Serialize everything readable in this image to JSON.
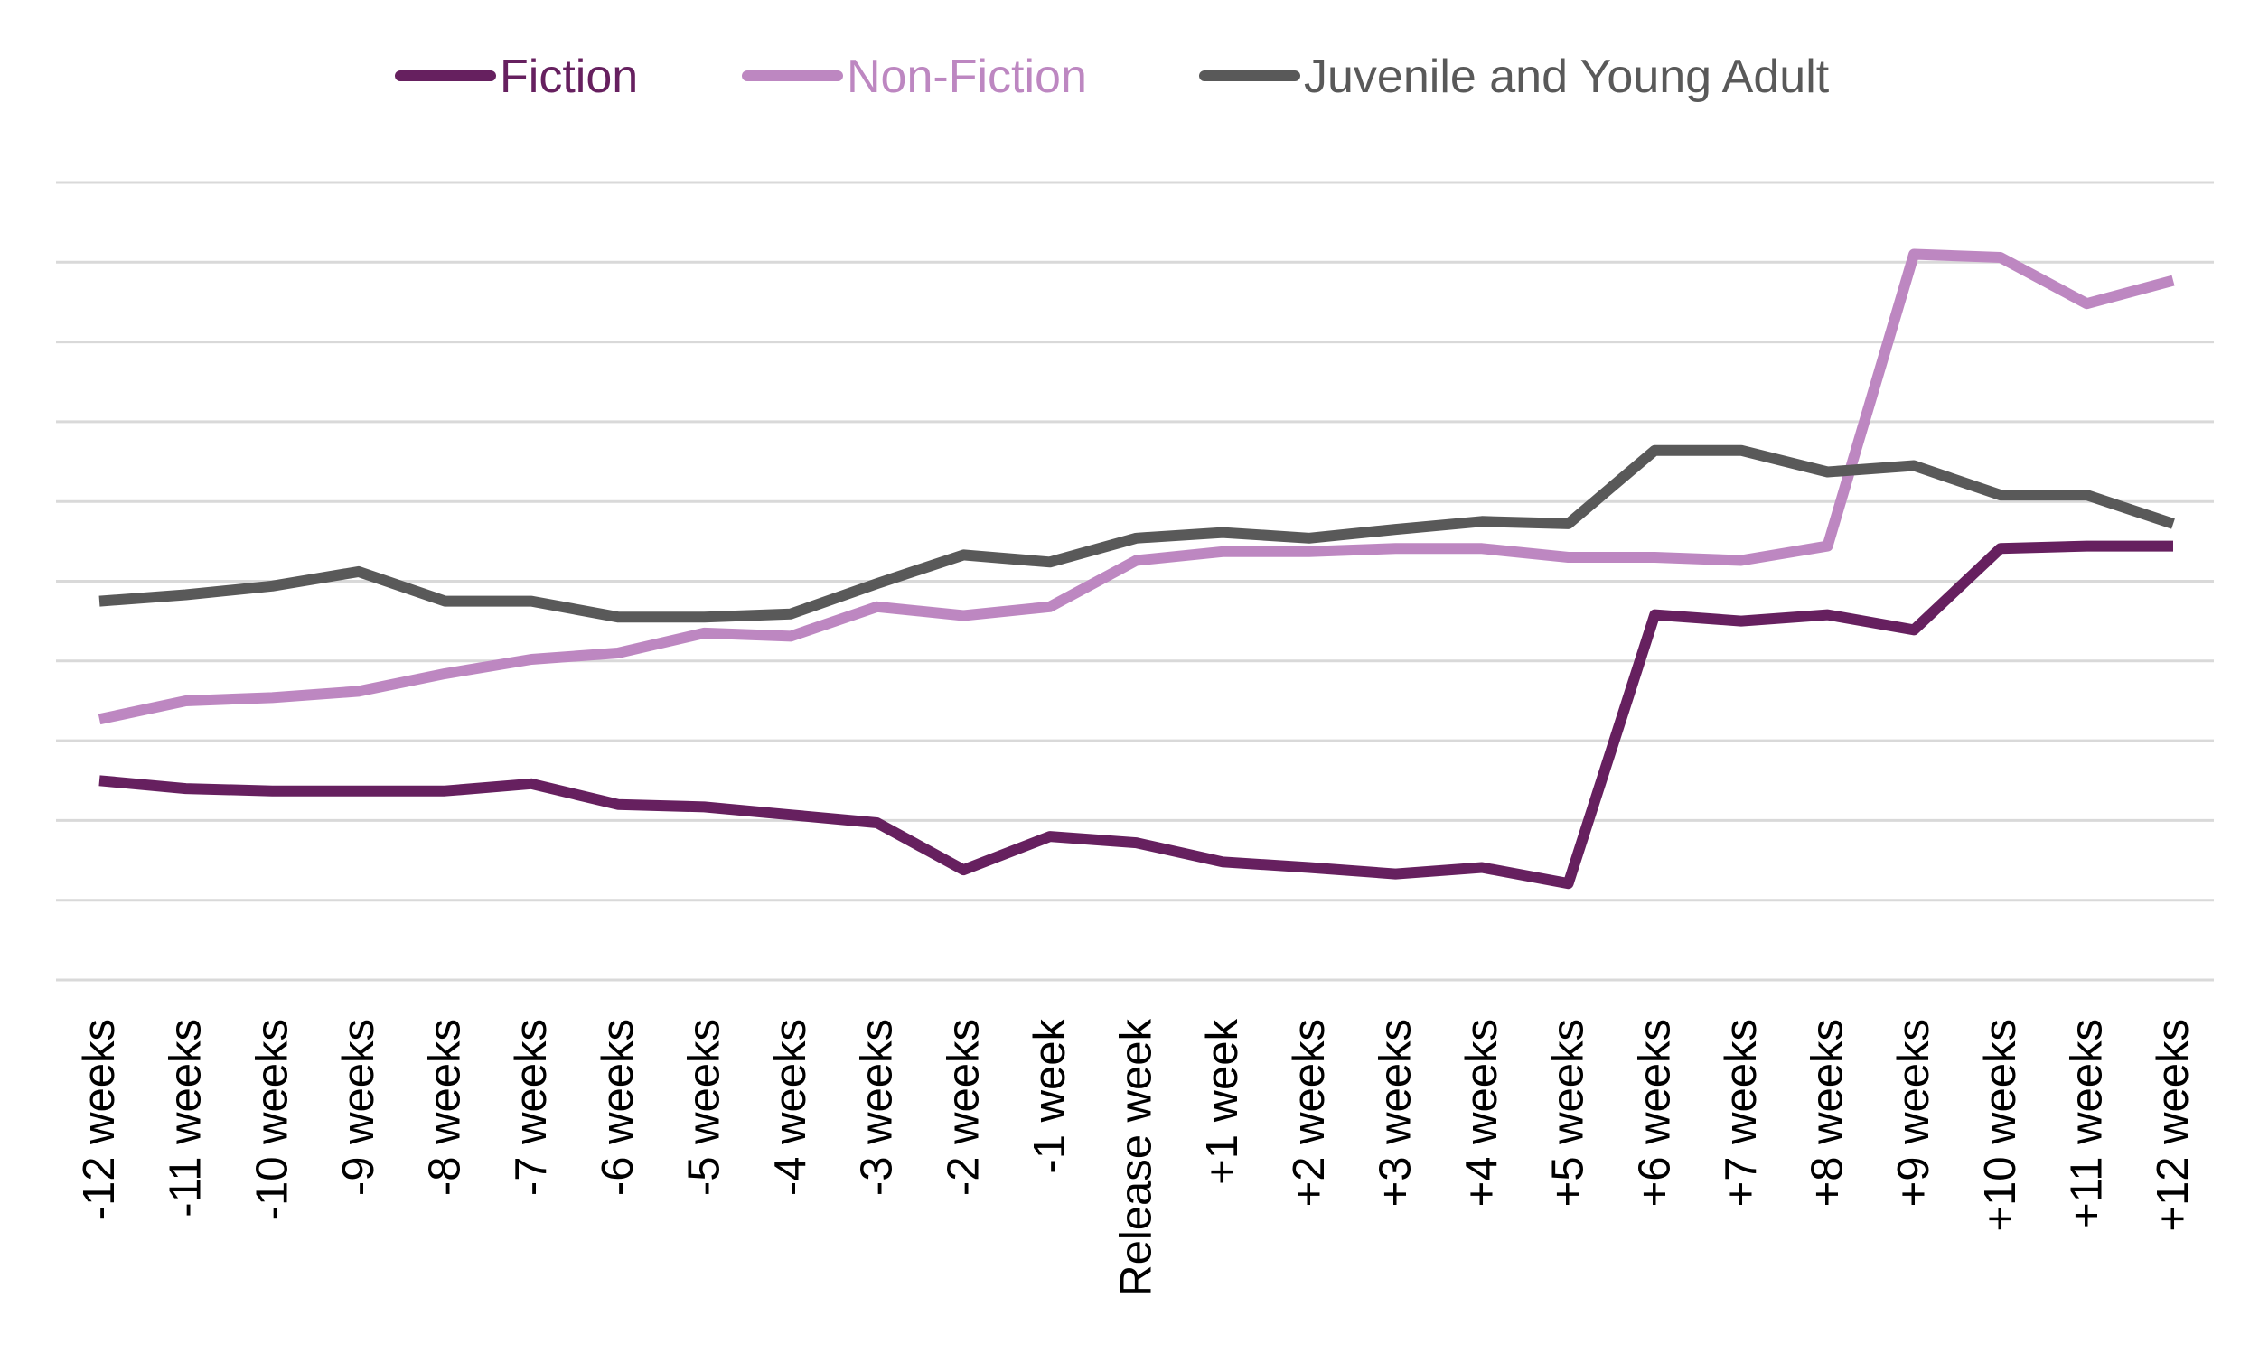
{
  "chart_data": {
    "type": "line",
    "title": "",
    "xlabel": "",
    "ylabel": "",
    "ylim": [
      0,
      10
    ],
    "y_gridlines": 11,
    "y_tick_labels_visible": false,
    "grid": true,
    "legend_position": "top",
    "categories": [
      "-12 weeks",
      "-11 weeks",
      "-10 weeks",
      "-9 weeks",
      "-8 weeks",
      "-7 weeks",
      "-6 weeks",
      "-5 weeks",
      "-4 weeks",
      "-3 weeks",
      "-2 weeks",
      "-1 week",
      "Release week",
      "+1 week",
      "+2 weeks",
      "+3 weeks",
      "+4 weeks",
      "+5 weeks",
      "+6 weeks",
      "+7 weeks",
      "+8 weeks",
      "+9 weeks",
      "+10 weeks",
      "+11 weeks",
      "+12 weeks"
    ],
    "series": [
      {
        "name": "Fiction",
        "color": "#66205f",
        "values": [
          2.5,
          2.4,
          2.37,
          2.37,
          2.37,
          2.46,
          2.2,
          2.17,
          2.07,
          1.97,
          1.38,
          1.8,
          1.72,
          1.48,
          1.41,
          1.33,
          1.41,
          1.21,
          4.58,
          4.5,
          4.58,
          4.39,
          5.41,
          5.44,
          5.44
        ]
      },
      {
        "name": "Non-Fiction",
        "color": "#bd87c1",
        "values": [
          3.27,
          3.5,
          3.54,
          3.62,
          3.84,
          4.02,
          4.1,
          4.35,
          4.31,
          4.68,
          4.57,
          4.68,
          5.26,
          5.37,
          5.37,
          5.41,
          5.41,
          5.3,
          5.3,
          5.26,
          5.44,
          9.1,
          9.06,
          8.48,
          8.77
        ]
      },
      {
        "name": "Juvenile and Young Adult",
        "color": "#595959",
        "values": [
          4.75,
          4.83,
          4.94,
          5.12,
          4.75,
          4.75,
          4.55,
          4.55,
          4.59,
          4.97,
          5.33,
          5.24,
          5.54,
          5.61,
          5.54,
          5.65,
          5.75,
          5.72,
          6.64,
          6.64,
          6.37,
          6.45,
          6.08,
          6.08,
          5.72
        ]
      }
    ]
  }
}
